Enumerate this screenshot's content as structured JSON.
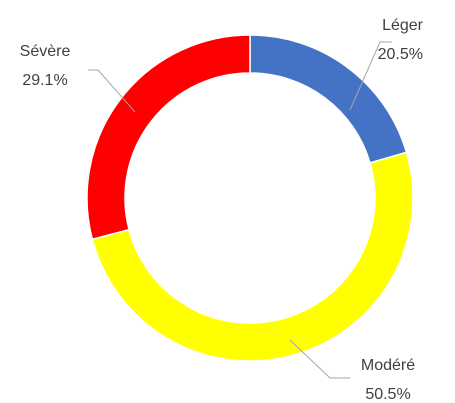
{
  "chart_data": {
    "type": "donut",
    "categories": [
      "Léger",
      "Modéré",
      "Sévère"
    ],
    "values": [
      20.5,
      50.5,
      29.1
    ],
    "value_labels": [
      "20.5%",
      "50.5%",
      "29.1%"
    ],
    "colors": [
      "#4472c4",
      "#ffff00",
      "#ff0000"
    ]
  }
}
